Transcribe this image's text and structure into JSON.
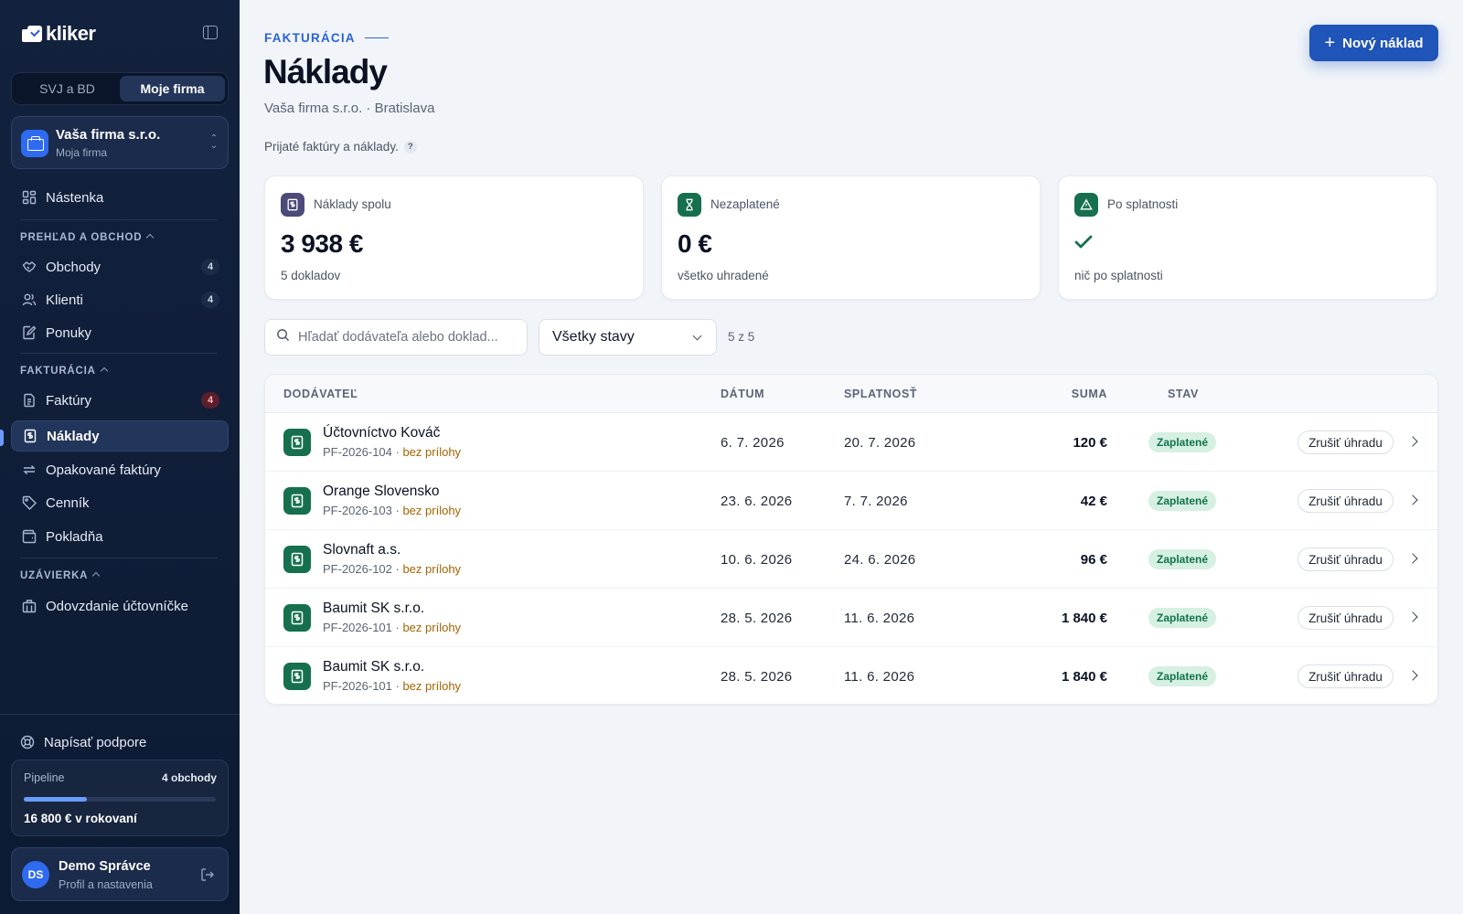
{
  "sidebar": {
    "logo_text": "kliker",
    "segments": [
      "SVJ a BD",
      "Moje firma"
    ],
    "active_segment": "Moje firma",
    "company": {
      "name": "Vaša firma s.r.o.",
      "sub": "Moja firma"
    },
    "dashboard": "Nástenka",
    "section_overview": "PREHĽAD A OBCHOD",
    "deals": {
      "label": "Obchody",
      "badge": "4"
    },
    "clients": {
      "label": "Klienti",
      "badge": "4"
    },
    "offers": {
      "label": "Ponuky"
    },
    "section_billing": "FAKTURÁCIA",
    "invoices": {
      "label": "Faktúry",
      "badge": "4"
    },
    "expenses": {
      "label": "Náklady"
    },
    "recurring": {
      "label": "Opakované faktúry"
    },
    "pricelist": {
      "label": "Cenník"
    },
    "cash": {
      "label": "Pokladňa"
    },
    "section_closing": "UZÁVIERKA",
    "accountant": {
      "label": "Odovzdanie účtovníčke"
    },
    "support": "Napísať podpore",
    "pipeline": {
      "label": "Pipeline",
      "count": "4 obchody",
      "value": "16 800 € v rokovaní",
      "progress": 0.33
    },
    "user": {
      "initials": "DS",
      "name": "Demo Správce",
      "sub": "Profil a nastavenia"
    }
  },
  "header": {
    "eyebrow": "FAKTURÁCIA",
    "title": "Náklady",
    "subtitle": "Vaša firma s.r.o. · Bratislava",
    "hint": "Prijaté faktúry a náklady.",
    "hint_q": "?",
    "new_button": "Nový náklad",
    "new_button_plus": "+"
  },
  "cards": [
    {
      "label": "Náklady spolu",
      "value": "3 938 €",
      "sub": "5 dokladov",
      "color": "#4b4a78"
    },
    {
      "label": "Nezaplatené",
      "value": "0 €",
      "sub": "všetko uhradené",
      "color": "#16704e"
    },
    {
      "label": "Po splatnosti",
      "value": "",
      "sub": "nič po splatnosti",
      "color": "#16704e"
    }
  ],
  "filters": {
    "search_placeholder": "Hľadať dodávateľa alebo doklad...",
    "status_selected": "Všetky stavy",
    "count": "5 z 5"
  },
  "table": {
    "headers": {
      "supplier": "DODÁVATEĽ",
      "date": "DÁTUM",
      "due": "SPLATNOSŤ",
      "sum": "SUMA",
      "status": "STAV"
    },
    "rows": [
      {
        "name": "Účtovníctvo Kováč",
        "doc": "PF-2026-104",
        "sep": " · ",
        "attach": "bez prílohy",
        "date": "6. 7. 2026",
        "due": "20. 7. 2026",
        "sum": "120 €",
        "status": "Zaplatené",
        "action": "Zrušiť úhradu"
      },
      {
        "name": "Orange Slovensko",
        "doc": "PF-2026-103",
        "sep": " · ",
        "attach": "bez prílohy",
        "date": "23. 6. 2026",
        "due": "7. 7. 2026",
        "sum": "42 €",
        "status": "Zaplatené",
        "action": "Zrušiť úhradu"
      },
      {
        "name": "Slovnaft a.s.",
        "doc": "PF-2026-102",
        "sep": " · ",
        "attach": "bez prílohy",
        "date": "10. 6. 2026",
        "due": "24. 6. 2026",
        "sum": "96 €",
        "status": "Zaplatené",
        "action": "Zrušiť úhradu"
      },
      {
        "name": "Baumit SK s.r.o.",
        "doc": "PF-2026-101",
        "sep": " · ",
        "attach": "bez prílohy",
        "date": "28. 5. 2026",
        "due": "11. 6. 2026",
        "sum": "1 840 €",
        "status": "Zaplatené",
        "action": "Zrušiť úhradu"
      },
      {
        "name": "Baumit SK s.r.o.",
        "doc": "PF-2026-101",
        "sep": " · ",
        "attach": "bez prílohy",
        "date": "28. 5. 2026",
        "due": "11. 6. 2026",
        "sum": "1 840 €",
        "status": "Zaplatené",
        "action": "Zrušiť úhradu"
      }
    ]
  }
}
